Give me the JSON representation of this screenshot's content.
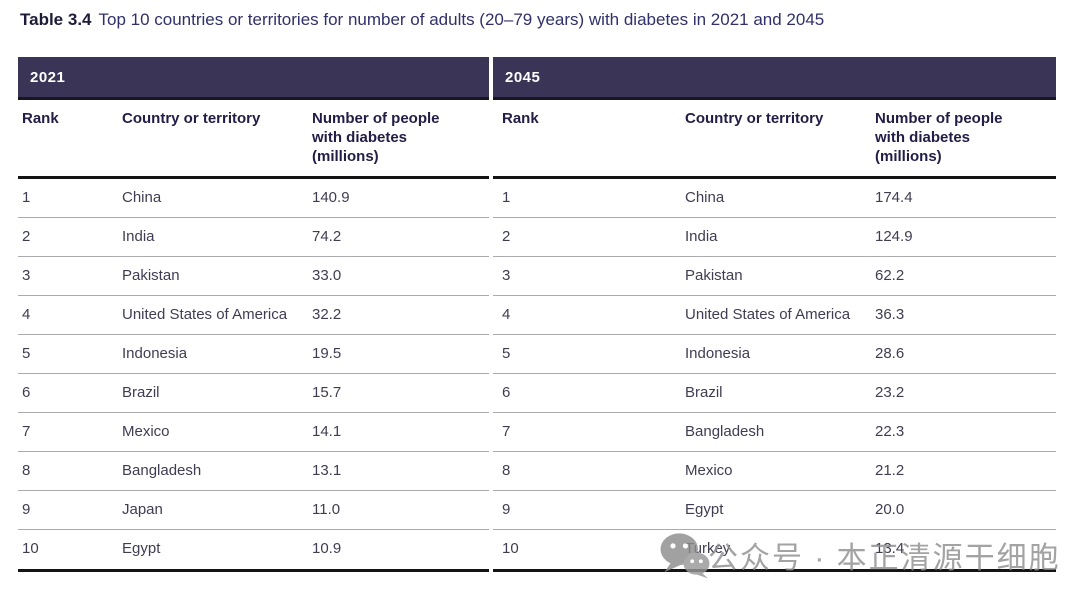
{
  "title": {
    "label": "Table 3.4",
    "text": "Top 10 countries or territories for number of adults (20–79 years) with diabetes in 2021 and 2045"
  },
  "table": {
    "columns": {
      "rank": "Rank",
      "country": "Country or territory",
      "value": "Number of people with diabetes (millions)"
    },
    "panels": [
      {
        "year": "2021",
        "rows": [
          {
            "rank": "1",
            "country": "China",
            "value": "140.9"
          },
          {
            "rank": "2",
            "country": "India",
            "value": "74.2"
          },
          {
            "rank": "3",
            "country": "Pakistan",
            "value": "33.0"
          },
          {
            "rank": "4",
            "country": "United States of America",
            "value": "32.2"
          },
          {
            "rank": "5",
            "country": "Indonesia",
            "value": "19.5"
          },
          {
            "rank": "6",
            "country": "Brazil",
            "value": "15.7"
          },
          {
            "rank": "7",
            "country": "Mexico",
            "value": "14.1"
          },
          {
            "rank": "8",
            "country": "Bangladesh",
            "value": "13.1"
          },
          {
            "rank": "9",
            "country": "Japan",
            "value": "11.0"
          },
          {
            "rank": "10",
            "country": "Egypt",
            "value": "10.9"
          }
        ]
      },
      {
        "year": "2045",
        "rows": [
          {
            "rank": "1",
            "country": "China",
            "value": "174.4"
          },
          {
            "rank": "2",
            "country": "India",
            "value": "124.9"
          },
          {
            "rank": "3",
            "country": "Pakistan",
            "value": "62.2"
          },
          {
            "rank": "4",
            "country": "United States of America",
            "value": "36.3"
          },
          {
            "rank": "5",
            "country": "Indonesia",
            "value": "28.6"
          },
          {
            "rank": "6",
            "country": "Brazil",
            "value": "23.2"
          },
          {
            "rank": "7",
            "country": "Bangladesh",
            "value": "22.3"
          },
          {
            "rank": "8",
            "country": "Mexico",
            "value": "21.2"
          },
          {
            "rank": "9",
            "country": "Egypt",
            "value": "20.0"
          },
          {
            "rank": "10",
            "country": "Turkey",
            "value": "13.4"
          }
        ]
      }
    ]
  },
  "chart_data": {
    "type": "table",
    "title": "Table 3.4 Top 10 countries or territories for number of adults (20–79 years) with diabetes in 2021 and 2045",
    "categories": [
      "China",
      "India",
      "Pakistan",
      "United States of America",
      "Indonesia",
      "Brazil",
      "Mexico",
      "Bangladesh",
      "Japan",
      "Egypt",
      "Turkey"
    ],
    "series": [
      {
        "name": "2021 number of people with diabetes (millions)",
        "values": [
          140.9,
          74.2,
          33.0,
          32.2,
          19.5,
          15.7,
          14.1,
          13.1,
          11.0,
          10.9,
          null
        ]
      },
      {
        "name": "2045 number of people with diabetes (millions)",
        "values": [
          174.4,
          124.9,
          62.2,
          36.3,
          28.6,
          23.2,
          21.2,
          22.3,
          null,
          20.0,
          13.4
        ]
      }
    ]
  },
  "watermark": {
    "icon": "wechat-icon",
    "text": "公众号 · 本正清源干细胞"
  },
  "colors": {
    "band_background": "#3a3456",
    "band_text": "#ffffff",
    "header_text": "#221d45",
    "body_text": "#3f3d52",
    "title_text": "#31306a",
    "thick_rule": "#141414",
    "thin_rule": "#ababaf",
    "watermark_gray": "#8f8f8f"
  }
}
